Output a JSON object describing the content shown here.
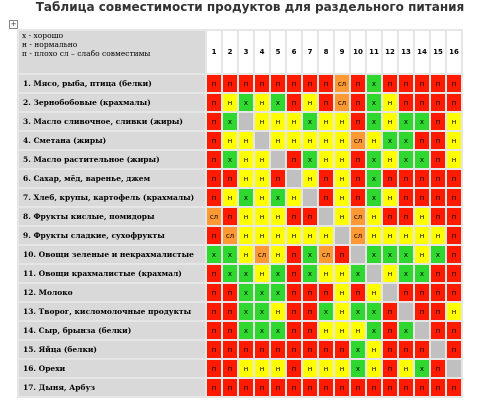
{
  "title": "Таблица совместимости продуктов для раздельного питания",
  "legend": {
    "line1": "х -  хорошо",
    "line2": "н -  нормально",
    "line3": "п - плохо           сл – слабо совместимы"
  },
  "columns": [
    "1",
    "2",
    "3",
    "4",
    "5",
    "6",
    "7",
    "8",
    "9",
    "10",
    "11",
    "12",
    "13",
    "14",
    "15",
    "16"
  ],
  "rows": [
    {
      "label": "1. Мясо, рыба, птица (белки)",
      "cells": [
        "п",
        "п",
        "п",
        "п",
        "п",
        "п",
        "п",
        "п",
        "сл",
        "п",
        "х",
        "п",
        "п",
        "п",
        "п",
        "п"
      ]
    },
    {
      "label": "2. Зернобобовые (крахмалы)",
      "cells": [
        "п",
        "н",
        "х",
        "н",
        "х",
        "п",
        "н",
        "п",
        "сл",
        "п",
        "х",
        "н",
        "п",
        "п",
        "п",
        "п"
      ]
    },
    {
      "label": "3. Масло сливочное, сливки (жиры)",
      "cells": [
        "п",
        "х",
        "",
        "н",
        "н",
        "н",
        "х",
        "н",
        "н",
        "п",
        "х",
        "н",
        "х",
        "х",
        "п",
        "н"
      ]
    },
    {
      "label": "4. Сметана (жиры)",
      "cells": [
        "п",
        "н",
        "н",
        "",
        "н",
        "н",
        "н",
        "н",
        "н",
        "сл",
        "н",
        "х",
        "х",
        "п",
        "п",
        "н"
      ]
    },
    {
      "label": "5. Масло растительное (жиры)",
      "cells": [
        "п",
        "х",
        "н",
        "н",
        "",
        "п",
        "х",
        "н",
        "н",
        "п",
        "х",
        "н",
        "х",
        "х",
        "п",
        "н"
      ]
    },
    {
      "label": "6. Сахар, мёд, варенье, джем",
      "cells": [
        "п",
        "п",
        "н",
        "н",
        "п",
        "",
        "н",
        "п",
        "н",
        "п",
        "х",
        "п",
        "п",
        "п",
        "п",
        "п"
      ]
    },
    {
      "label": "7. Хлеб, крупы, картофель (крахмалы)",
      "cells": [
        "п",
        "н",
        "х",
        "н",
        "х",
        "н",
        "",
        "п",
        "н",
        "п",
        "х",
        "н",
        "п",
        "п",
        "п",
        "п"
      ]
    },
    {
      "label": "8. Фрукты кислые, помидоры",
      "cells": [
        "сл",
        "п",
        "н",
        "н",
        "н",
        "п",
        "п",
        "",
        "н",
        "сл",
        "н",
        "п",
        "п",
        "н",
        "п",
        "п"
      ]
    },
    {
      "label": "9. Фрукты сладкие, сухофрукты",
      "cells": [
        "п",
        "сл",
        "н",
        "н",
        "н",
        "н",
        "н",
        "н",
        "",
        "сл",
        "н",
        "н",
        "н",
        "н",
        "н",
        "п"
      ]
    },
    {
      "label": "10. Овощи зеленые и некрахмалистые",
      "cells": [
        "х",
        "х",
        "н",
        "сл",
        "н",
        "п",
        "х",
        "сл",
        "п",
        "",
        "х",
        "х",
        "х",
        "н",
        "х",
        "п"
      ]
    },
    {
      "label": "11. Овощи крахмалистые (крахмал)",
      "cells": [
        "п",
        "х",
        "х",
        "н",
        "х",
        "п",
        "х",
        "н",
        "н",
        "х",
        "",
        "н",
        "х",
        "х",
        "п",
        "п"
      ]
    },
    {
      "label": "12. Молоко",
      "cells": [
        "п",
        "п",
        "х",
        "х",
        "х",
        "п",
        "п",
        "п",
        "н",
        "п",
        "н",
        "",
        "п",
        "п",
        "п",
        "п"
      ]
    },
    {
      "label": "13. Творог, кисломолочные продукты",
      "cells": [
        "п",
        "п",
        "х",
        "х",
        "н",
        "п",
        "п",
        "х",
        "н",
        "х",
        "х",
        "п",
        "",
        "п",
        "п",
        "н"
      ]
    },
    {
      "label": "14. Сыр, брынза (белки)",
      "cells": [
        "п",
        "п",
        "х",
        "х",
        "х",
        "п",
        "п",
        "н",
        "н",
        "н",
        "х",
        "п",
        "х",
        "",
        "п",
        "п"
      ]
    },
    {
      "label": "15. Яйца (белки)",
      "cells": [
        "п",
        "п",
        "п",
        "п",
        "п",
        "п",
        "п",
        "п",
        "п",
        "х",
        "н",
        "п",
        "п",
        "п",
        "",
        "п"
      ]
    },
    {
      "label": "16. Орехи",
      "cells": [
        "п",
        "п",
        "н",
        "н",
        "н",
        "п",
        "н",
        "н",
        "н",
        "х",
        "н",
        "п",
        "н",
        "х",
        "п",
        ""
      ]
    },
    {
      "label": "17. Дыня, Арбуз",
      "cells": [
        "п",
        "п",
        "п",
        "п",
        "п",
        "п",
        "п",
        "п",
        "п",
        "п",
        "п",
        "п",
        "п",
        "п",
        "п",
        "п"
      ]
    }
  ]
}
